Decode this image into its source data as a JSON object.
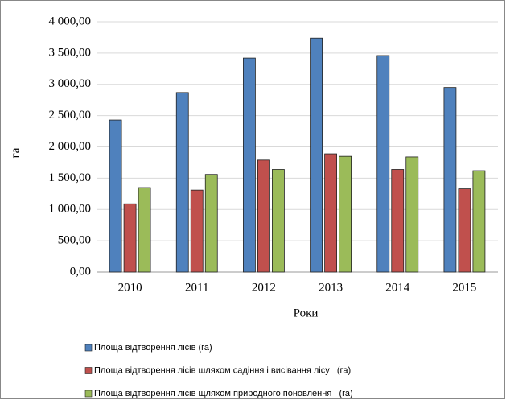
{
  "chart_data": {
    "type": "bar",
    "x_label": "Роки",
    "y_label": "га",
    "categories": [
      "2010",
      "2011",
      "2012",
      "2013",
      "2014",
      "2015"
    ],
    "series": [
      {
        "name": "Площа відтворення лісів (га)",
        "color": "#4f81bd",
        "values": [
          2430,
          2870,
          3420,
          3740,
          3460,
          2950
        ]
      },
      {
        "name": "Площа відтворення лісів шляхом садіння і висівання лісу   (га)",
        "color": "#c0504d",
        "values": [
          1090,
          1310,
          1790,
          1890,
          1640,
          1330
        ]
      },
      {
        "name": "Площа відтворення лісів щляхом природного поновлення   (га)",
        "color": "#9bbb59",
        "values": [
          1350,
          1560,
          1640,
          1850,
          1840,
          1620
        ]
      }
    ],
    "ylim": [
      0,
      4000
    ],
    "yticks": [
      {
        "value": 0,
        "label": "0,00"
      },
      {
        "value": 500,
        "label": "500,00"
      },
      {
        "value": 1000,
        "label": "1 000,00"
      },
      {
        "value": 1500,
        "label": "1 500,00"
      },
      {
        "value": 2000,
        "label": "2 000,00"
      },
      {
        "value": 2500,
        "label": "2 500,00"
      },
      {
        "value": 3000,
        "label": "3 000,00"
      },
      {
        "value": 3500,
        "label": "3 500,00"
      },
      {
        "value": 4000,
        "label": "4 000,00"
      }
    ],
    "grid": true
  }
}
